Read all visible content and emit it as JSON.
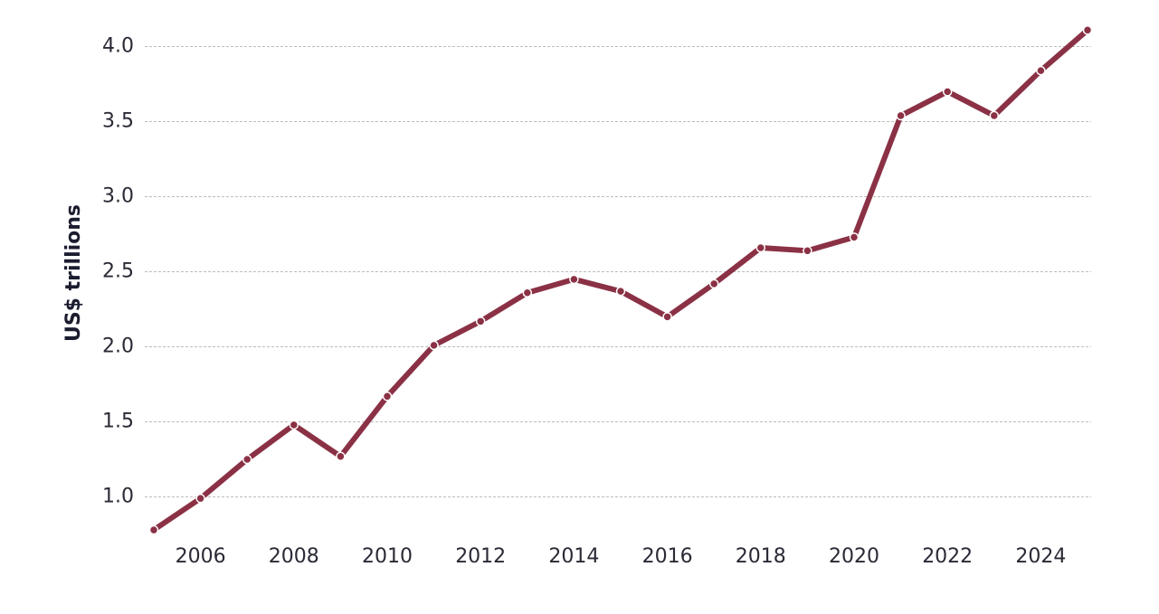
{
  "chart_data": {
    "type": "line",
    "y_label": "US$ trillions",
    "x": [
      2005,
      2006,
      2007,
      2008,
      2009,
      2010,
      2011,
      2012,
      2013,
      2014,
      2015,
      2016,
      2017,
      2018,
      2019,
      2020,
      2021,
      2022,
      2023,
      2024,
      2025
    ],
    "series": [
      {
        "color": "#8b3145",
        "values": [
          0.78,
          0.99,
          1.25,
          1.48,
          1.27,
          1.67,
          2.01,
          2.17,
          2.36,
          2.45,
          2.37,
          2.2,
          2.42,
          2.66,
          2.64,
          2.73,
          3.54,
          3.7,
          3.54,
          3.84,
          4.11
        ]
      }
    ],
    "xlim": [
      2005,
      2025
    ],
    "xticks": [
      2006,
      2008,
      2010,
      2012,
      2014,
      2016,
      2018,
      2020,
      2022,
      2024
    ],
    "ylim": [
      0.72,
      4.16
    ],
    "yticks": [
      {
        "value": 1,
        "label": "1.0"
      },
      1.5,
      {
        "value": 2,
        "label": "2.0"
      },
      2.5,
      {
        "value": 3,
        "label": "3.0"
      },
      3.5,
      {
        "value": 4,
        "label": "4.0"
      }
    ],
    "grid": true
  }
}
